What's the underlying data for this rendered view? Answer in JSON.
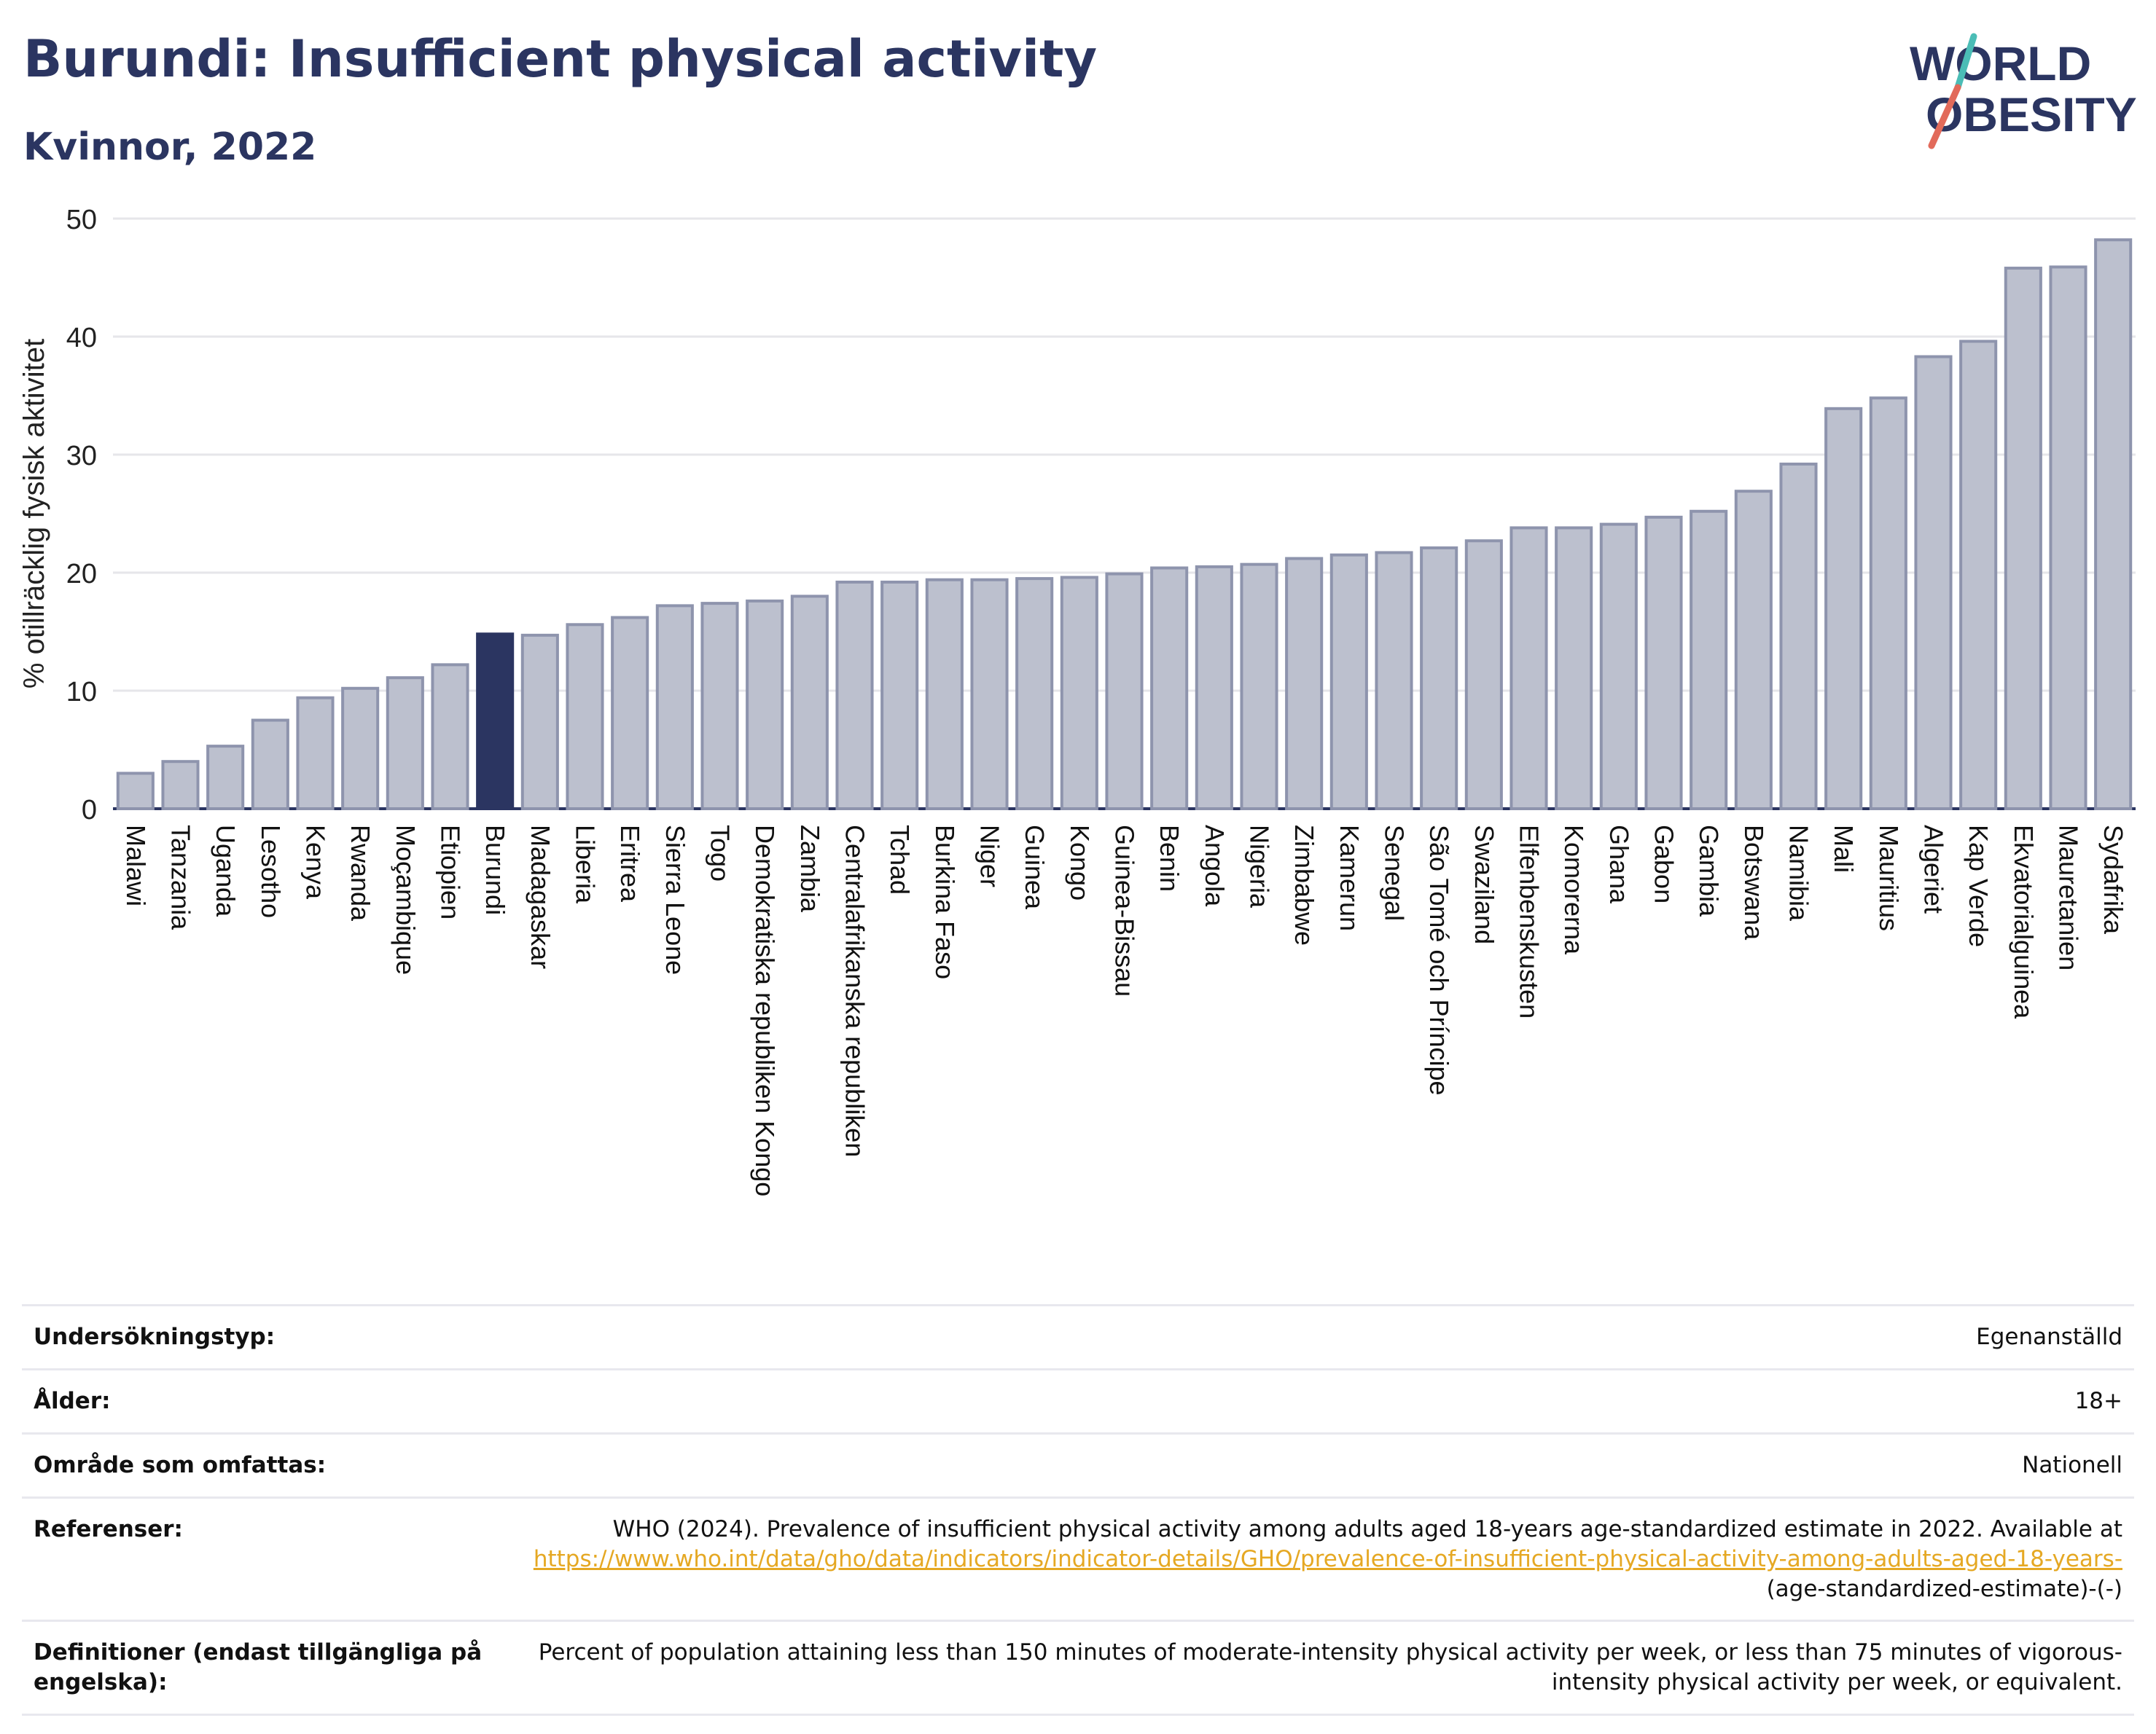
{
  "header": {
    "title": "Burundi: Insufficient physical activity",
    "subtitle": "Kvinnor, 2022"
  },
  "logo": {
    "line1": "WORLD",
    "line2": "OBESITY"
  },
  "colors": {
    "highlight": "#2b3561",
    "bar": "#bcc0ce",
    "bar_stroke": "#8e94ad",
    "grid": "#e6e6ea",
    "text": "#2b3561"
  },
  "chart_data": {
    "type": "bar",
    "title": "Burundi: Insufficient physical activity",
    "subtitle": "Kvinnor, 2022",
    "xlabel": "",
    "ylabel": "% otillräcklig fysisk aktivitet",
    "ylim": [
      0,
      50
    ],
    "yticks": [
      0,
      10,
      20,
      30,
      40,
      50
    ],
    "grid": true,
    "highlight": "Burundi",
    "categories": [
      "Malawi",
      "Tanzania",
      "Uganda",
      "Lesotho",
      "Kenya",
      "Rwanda",
      "Moçambique",
      "Etiopien",
      "Burundi",
      "Madagaskar",
      "Liberia",
      "Eritrea",
      "Sierra Leone",
      "Togo",
      "Demokratiska republiken Kongo",
      "Zambia",
      "Centralafrikanska republiken",
      "Tchad",
      "Burkina Faso",
      "Niger",
      "Guinea",
      "Kongo",
      "Guinea-Bissau",
      "Benin",
      "Angola",
      "Nigeria",
      "Zimbabwe",
      "Kamerun",
      "Senegal",
      "São Tomé och Príncipe",
      "Swaziland",
      "Elfenbenskusten",
      "Komorerna",
      "Ghana",
      "Gabon",
      "Gambia",
      "Botswana",
      "Namibia",
      "Mali",
      "Mauritius",
      "Algeriet",
      "Kap Verde",
      "Ekvatorialguinea",
      "Mauretanien",
      "Sydafrika"
    ],
    "values": [
      3.0,
      4.0,
      5.3,
      7.5,
      9.4,
      10.2,
      11.1,
      12.2,
      14.8,
      14.7,
      15.6,
      16.2,
      17.2,
      17.4,
      17.6,
      18.0,
      19.2,
      19.2,
      19.4,
      19.4,
      19.5,
      19.6,
      19.9,
      20.4,
      20.5,
      20.7,
      21.2,
      21.5,
      21.7,
      22.1,
      22.7,
      23.8,
      23.8,
      24.1,
      24.7,
      25.2,
      26.9,
      29.2,
      33.9,
      34.8,
      38.3,
      39.6,
      45.8,
      45.9,
      48.2
    ]
  },
  "meta": {
    "rows": [
      {
        "key": "Undersökningstyp:",
        "value": "Egenanställd"
      },
      {
        "key": "Ålder:",
        "value": "18+"
      },
      {
        "key": "Område som omfattas:",
        "value": "Nationell"
      }
    ],
    "references": {
      "key": "Referenser:",
      "text": "WHO (2024). Prevalence of insufficient physical activity among adults aged 18-years age-standardized estimate in 2022. Available at",
      "link": "https://www.who.int/data/gho/data/indicators/indicator-details/GHO/prevalence-of-insufficient-physical-activity-among-adults-aged-18-years-",
      "suffix": "(age-standardized-estimate)-(-)"
    },
    "definitions": {
      "key": "Definitioner (endast tillgängliga på engelska):",
      "value": "Percent of population attaining less than 150 minutes of moderate-intensity physical activity per week, or less than 75 minutes of vigorous-intensity physical activity per week, or equivalent."
    }
  }
}
